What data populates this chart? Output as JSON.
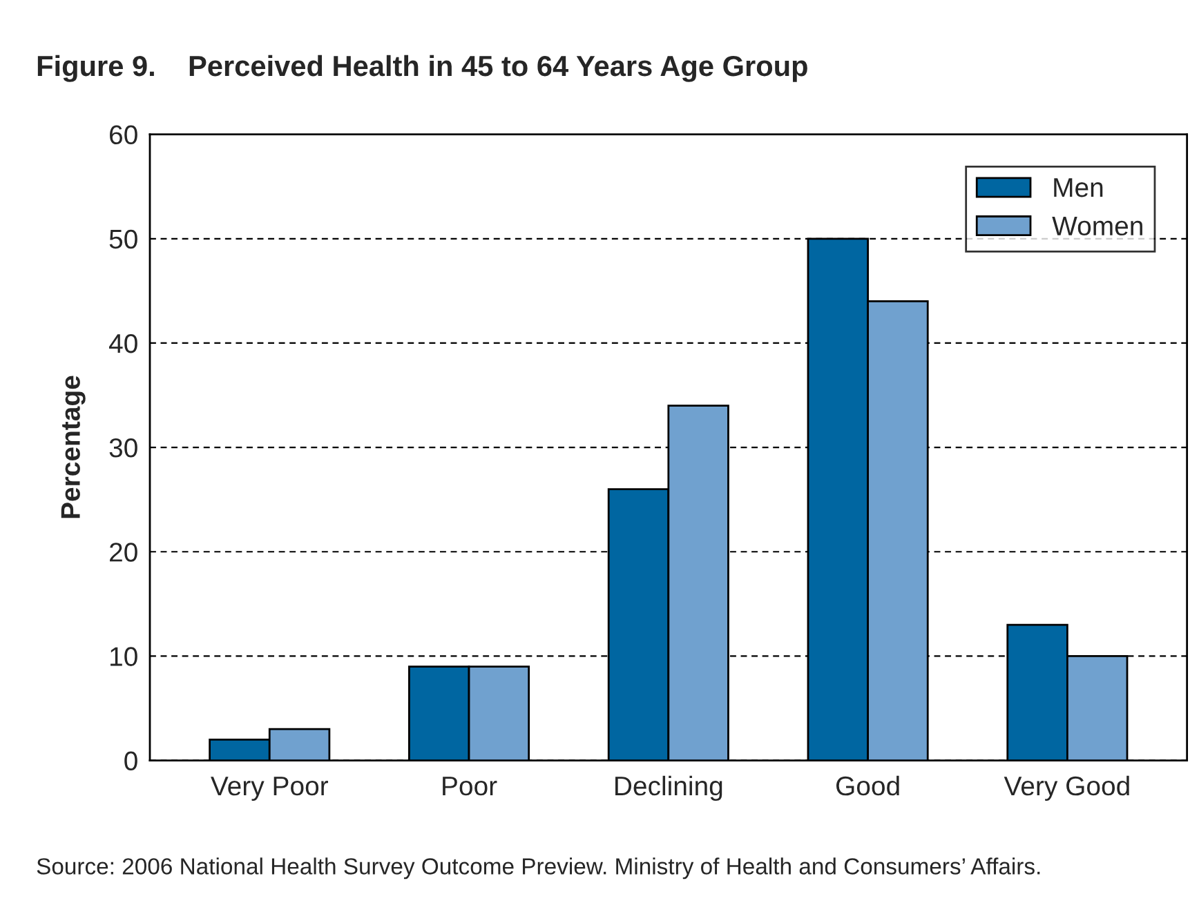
{
  "chart_data": {
    "type": "bar",
    "title": "Figure 9.    Perceived Health in 45 to 64 Years Age Group",
    "ylabel": "Percentage",
    "categories": [
      "Very Poor",
      "Poor",
      "Declining",
      "Good",
      "Very Good"
    ],
    "series": [
      {
        "name": "Men",
        "color": "#0066a1",
        "values": [
          2,
          9,
          26,
          50,
          13
        ]
      },
      {
        "name": "Women",
        "color": "#70a1cf",
        "values": [
          3,
          9,
          34,
          44,
          10
        ]
      }
    ],
    "ylim": [
      0,
      60
    ],
    "yticks": [
      0,
      10,
      20,
      30,
      40,
      50,
      60
    ],
    "grid": "y",
    "legend": "top right",
    "annotations": [
      "Source: 2006 National Health Survey Outcome Preview. Ministry of Health and Consumers’ Affairs."
    ]
  }
}
